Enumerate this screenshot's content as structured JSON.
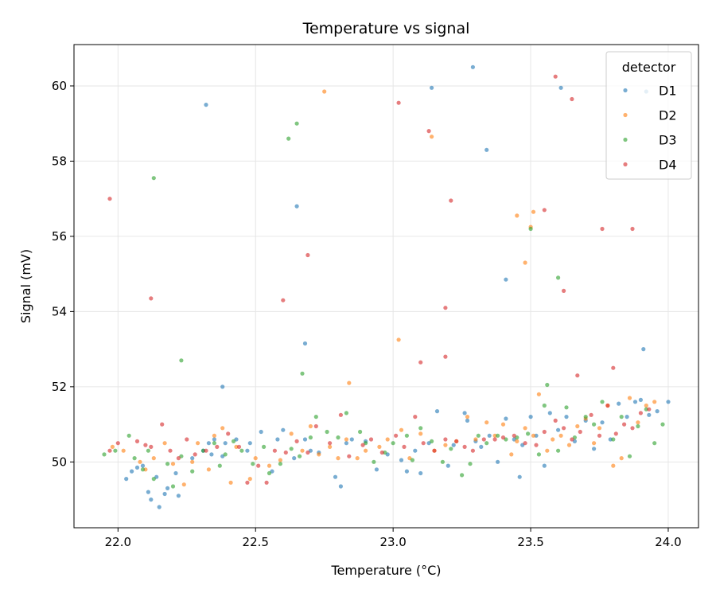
{
  "colors": {
    "D1": "#1f77b4",
    "D2": "#ff7f0e",
    "D3": "#2ca02c",
    "D4": "#d62728",
    "grid": "#e6e6e6",
    "axes": "#000000"
  },
  "chart_data": {
    "type": "scatter",
    "title": "Temperature vs signal",
    "xlabel": "Temperature (°C)",
    "ylabel": "Signal (mV)",
    "xlim": [
      21.84,
      24.11
    ],
    "ylim": [
      48.25,
      61.1
    ],
    "xticks": [
      22.0,
      22.5,
      23.0,
      23.5,
      24.0
    ],
    "xtick_labels": [
      "22.0",
      "22.5",
      "23.0",
      "23.5",
      "24.0"
    ],
    "yticks": [
      50,
      52,
      54,
      56,
      58,
      60
    ],
    "ytick_labels": [
      "50",
      "52",
      "54",
      "56",
      "58",
      "60"
    ],
    "grid": true,
    "legend": {
      "title": "detector",
      "position": "top-right"
    },
    "series": [
      {
        "name": "D1",
        "x": [
          22.03,
          22.05,
          22.07,
          22.09,
          22.11,
          22.12,
          22.14,
          22.15,
          22.17,
          22.18,
          22.21,
          22.22,
          22.27,
          22.31,
          22.33,
          22.34,
          22.35,
          22.38,
          22.39,
          22.43,
          22.47,
          22.48,
          22.52,
          22.56,
          22.58,
          22.6,
          22.64,
          22.68,
          22.7,
          22.73,
          22.79,
          22.81,
          22.83,
          22.85,
          22.9,
          22.94,
          22.98,
          23.03,
          23.05,
          23.08,
          23.1,
          23.13,
          23.16,
          23.2,
          23.22,
          23.26,
          23.27,
          23.3,
          23.32,
          23.35,
          23.38,
          23.41,
          23.44,
          23.46,
          23.47,
          23.5,
          23.52,
          23.55,
          23.57,
          23.6,
          23.63,
          23.66,
          23.7,
          23.73,
          23.76,
          23.79,
          23.82,
          23.85,
          23.88,
          23.9,
          23.93,
          23.96,
          24.0,
          22.32,
          22.65,
          22.68,
          22.38,
          23.14,
          23.29,
          23.34,
          23.41,
          23.61,
          23.91,
          23.92
        ],
        "y": [
          49.55,
          49.75,
          49.85,
          49.9,
          49.2,
          49.0,
          49.6,
          48.8,
          49.15,
          49.3,
          49.7,
          49.1,
          50.1,
          50.3,
          50.5,
          50.2,
          50.6,
          50.15,
          50.5,
          50.6,
          50.3,
          50.5,
          50.8,
          49.75,
          50.6,
          50.85,
          50.1,
          50.6,
          50.3,
          50.25,
          49.6,
          49.35,
          50.5,
          50.6,
          50.55,
          49.8,
          50.2,
          50.05,
          49.75,
          50.3,
          49.7,
          50.5,
          51.35,
          49.9,
          50.45,
          51.3,
          51.1,
          50.55,
          50.4,
          50.7,
          50.0,
          51.15,
          50.6,
          49.6,
          50.45,
          51.2,
          50.7,
          49.9,
          51.3,
          50.85,
          51.2,
          50.55,
          51.1,
          50.35,
          51.05,
          50.6,
          51.55,
          51.2,
          51.6,
          51.65,
          51.25,
          51.35,
          51.6,
          59.5,
          56.8,
          53.15,
          52.0,
          59.95,
          60.5,
          58.3,
          54.85,
          59.95,
          53.0,
          59.85
        ]
      },
      {
        "name": "D2",
        "x": [
          21.98,
          22.02,
          22.08,
          22.1,
          22.13,
          22.17,
          22.2,
          22.24,
          22.27,
          22.29,
          22.33,
          22.35,
          22.38,
          22.41,
          22.43,
          22.48,
          22.5,
          22.55,
          22.59,
          22.63,
          22.67,
          22.7,
          22.73,
          22.77,
          22.8,
          22.83,
          22.87,
          22.9,
          22.95,
          22.98,
          23.03,
          23.06,
          23.1,
          23.15,
          23.19,
          23.23,
          23.27,
          23.3,
          23.34,
          23.37,
          23.4,
          23.43,
          23.45,
          23.48,
          23.51,
          23.53,
          23.56,
          23.58,
          23.61,
          23.64,
          23.67,
          23.7,
          23.73,
          23.75,
          23.78,
          23.8,
          23.83,
          23.86,
          23.89,
          23.92,
          23.95,
          22.75,
          23.14,
          23.48,
          23.5,
          23.51,
          23.45,
          22.84,
          23.02
        ],
        "y": [
          50.4,
          50.3,
          50.0,
          49.8,
          50.1,
          50.5,
          49.95,
          49.4,
          50.0,
          50.5,
          49.8,
          50.7,
          50.9,
          49.45,
          50.4,
          49.55,
          50.1,
          49.9,
          50.05,
          50.75,
          50.3,
          50.95,
          50.2,
          50.4,
          50.1,
          50.6,
          50.1,
          50.3,
          50.4,
          50.6,
          50.85,
          50.1,
          50.75,
          50.3,
          50.45,
          50.55,
          51.2,
          50.6,
          51.05,
          50.7,
          51.0,
          50.2,
          50.55,
          50.9,
          50.7,
          51.8,
          50.3,
          50.6,
          50.7,
          50.45,
          50.95,
          51.15,
          50.5,
          50.9,
          51.5,
          49.9,
          50.1,
          51.7,
          51.05,
          51.5,
          51.6,
          59.85,
          58.65,
          55.3,
          56.25,
          56.65,
          56.55,
          52.1,
          53.25
        ]
      },
      {
        "name": "D3",
        "x": [
          21.95,
          21.99,
          22.04,
          22.06,
          22.09,
          22.11,
          22.13,
          22.18,
          22.2,
          22.23,
          22.27,
          22.31,
          22.35,
          22.37,
          22.39,
          22.42,
          22.45,
          22.49,
          22.53,
          22.55,
          22.59,
          22.63,
          22.66,
          22.7,
          22.72,
          22.76,
          22.8,
          22.83,
          22.88,
          22.9,
          22.93,
          22.97,
          23.0,
          23.05,
          23.07,
          23.1,
          23.14,
          23.18,
          23.21,
          23.25,
          23.28,
          23.31,
          23.34,
          23.38,
          23.41,
          23.45,
          23.49,
          23.53,
          23.56,
          23.6,
          23.63,
          23.66,
          23.7,
          23.73,
          23.76,
          23.8,
          23.83,
          23.86,
          23.89,
          23.92,
          23.95,
          23.98,
          22.13,
          22.23,
          22.62,
          22.65,
          22.67,
          23.5,
          23.6,
          23.55
        ],
        "y": [
          50.2,
          50.3,
          50.7,
          50.1,
          49.8,
          50.3,
          49.55,
          49.95,
          49.35,
          50.15,
          49.75,
          50.3,
          50.5,
          49.9,
          50.2,
          50.55,
          50.3,
          49.95,
          50.4,
          49.7,
          49.95,
          50.35,
          50.15,
          50.65,
          51.2,
          50.8,
          50.65,
          51.3,
          50.8,
          50.5,
          50.0,
          50.25,
          50.5,
          50.7,
          50.05,
          50.9,
          50.55,
          50.0,
          50.35,
          49.65,
          49.95,
          50.7,
          50.5,
          50.7,
          50.6,
          50.65,
          50.75,
          50.2,
          52.05,
          50.3,
          51.45,
          50.65,
          51.2,
          51.0,
          51.6,
          50.6,
          51.2,
          50.15,
          50.95,
          51.4,
          50.5,
          51.0,
          57.55,
          52.7,
          58.6,
          59.0,
          52.35,
          56.2,
          54.9,
          51.5
        ],
        "color": "#2ca02c"
      },
      {
        "name": "D4",
        "x": [
          21.97,
          22.0,
          22.07,
          22.1,
          22.12,
          22.16,
          22.19,
          22.22,
          22.25,
          22.28,
          22.32,
          22.36,
          22.4,
          22.44,
          22.47,
          22.51,
          22.54,
          22.57,
          22.61,
          22.65,
          22.69,
          22.72,
          22.77,
          22.81,
          22.84,
          22.89,
          22.92,
          22.96,
          23.01,
          23.04,
          23.08,
          23.11,
          23.15,
          23.19,
          23.23,
          23.26,
          23.29,
          23.33,
          23.37,
          23.4,
          23.44,
          23.48,
          23.52,
          23.55,
          23.59,
          23.62,
          23.65,
          23.68,
          23.72,
          23.75,
          23.78,
          23.81,
          23.84,
          23.87,
          23.9,
          23.93,
          21.97,
          22.12,
          22.6,
          22.69,
          23.02,
          23.13,
          23.19,
          23.21,
          23.59,
          23.65,
          23.55,
          23.62,
          23.76,
          23.87,
          23.19,
          23.1,
          23.67,
          23.8
        ],
        "y": [
          50.3,
          50.5,
          50.55,
          50.45,
          50.4,
          51.0,
          50.3,
          50.1,
          50.6,
          50.2,
          50.3,
          50.4,
          50.75,
          50.4,
          49.45,
          49.9,
          49.45,
          50.3,
          50.25,
          50.55,
          50.25,
          50.95,
          50.5,
          51.25,
          50.15,
          50.45,
          50.6,
          50.25,
          50.7,
          50.4,
          51.2,
          50.5,
          50.3,
          50.6,
          50.55,
          50.4,
          50.3,
          50.6,
          50.6,
          50.65,
          50.7,
          50.5,
          50.45,
          50.8,
          51.1,
          50.9,
          50.6,
          50.8,
          51.25,
          50.7,
          51.5,
          50.75,
          51.0,
          50.9,
          51.3,
          51.4,
          57.0,
          54.35,
          54.3,
          55.5,
          59.55,
          58.8,
          54.1,
          56.95,
          60.25,
          59.65,
          56.7,
          54.55,
          56.2,
          56.2,
          52.8,
          52.65,
          52.3,
          52.5
        ]
      }
    ]
  }
}
